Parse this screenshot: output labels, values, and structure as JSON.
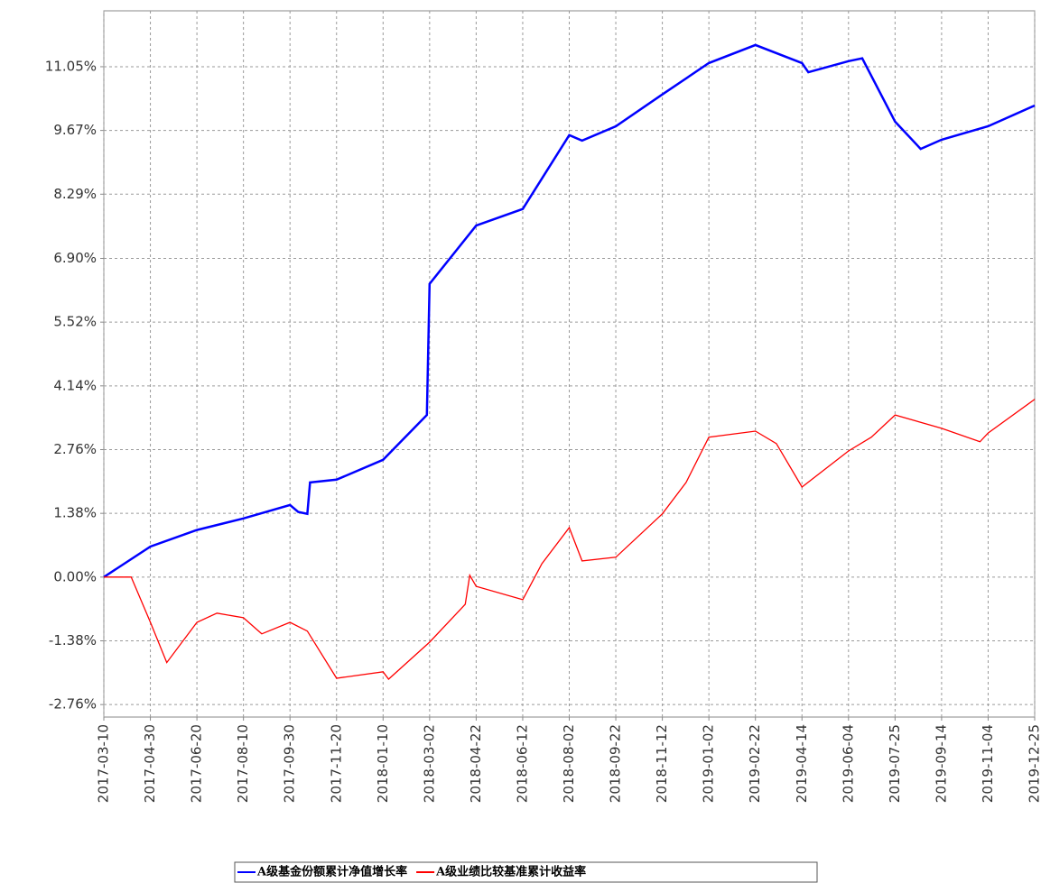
{
  "chart_data": {
    "type": "line",
    "xlim": [
      "2017-03-10",
      "2019-12-25"
    ],
    "xticks": [
      "2017-03-10",
      "2017-04-30",
      "2017-06-20",
      "2017-08-10",
      "2017-09-30",
      "2017-11-20",
      "2018-01-10",
      "2018-03-02",
      "2018-04-22",
      "2018-06-12",
      "2018-08-02",
      "2018-09-22",
      "2018-11-12",
      "2019-01-02",
      "2019-02-22",
      "2019-04-14",
      "2019-06-04",
      "2019-07-25",
      "2019-09-14",
      "2019-11-04",
      "2019-12-25"
    ],
    "ylim": [
      -3.03,
      12.26
    ],
    "yticks": [
      {
        "value": -2.76,
        "label": "-2.76%"
      },
      {
        "value": -1.38,
        "label": "-1.38%"
      },
      {
        "value": 0,
        "label": "0.00%"
      },
      {
        "value": 1.38,
        "label": "1.38%"
      },
      {
        "value": 2.76,
        "label": "2.76%"
      },
      {
        "value": 4.14,
        "label": "4.14%"
      },
      {
        "value": 5.52,
        "label": "5.52%"
      },
      {
        "value": 6.9,
        "label": "6.90%"
      },
      {
        "value": 8.29,
        "label": "8.29%"
      },
      {
        "value": 9.67,
        "label": "9.67%"
      },
      {
        "value": 11.05,
        "label": "11.05%"
      }
    ],
    "grid": true,
    "legend": "bottom",
    "series": [
      {
        "name": "A级基金份额累计净值增长率",
        "color": "#0000ff",
        "x": [
          "2017-03-10",
          "2017-04-30",
          "2017-06-20",
          "2017-08-10",
          "2017-09-30",
          "2017-10-09",
          "2017-10-19",
          "2017-10-22",
          "2017-11-20",
          "2018-01-10",
          "2018-02-27",
          "2018-03-02",
          "2018-04-22",
          "2018-06-12",
          "2018-08-02",
          "2018-08-16",
          "2018-09-22",
          "2018-11-12",
          "2019-01-02",
          "2019-02-22",
          "2019-04-14",
          "2019-04-21",
          "2019-06-04",
          "2019-06-19",
          "2019-07-25",
          "2019-08-22",
          "2019-09-14",
          "2019-11-04",
          "2019-12-25"
        ],
        "values": [
          0.0,
          0.66,
          1.02,
          1.27,
          1.56,
          1.41,
          1.37,
          2.05,
          2.11,
          2.54,
          3.51,
          6.35,
          7.61,
          7.97,
          9.57,
          9.45,
          9.76,
          10.45,
          11.13,
          11.52,
          11.13,
          10.93,
          11.17,
          11.23,
          9.86,
          9.27,
          9.47,
          9.76,
          10.21
        ]
      },
      {
        "name": "A级业绩比较基准累计收益率",
        "color": "#ff0000",
        "x": [
          "2017-03-10",
          "2017-04-09",
          "2017-04-30",
          "2017-05-18",
          "2017-06-20",
          "2017-07-12",
          "2017-08-10",
          "2017-08-30",
          "2017-09-30",
          "2017-10-19",
          "2017-11-20",
          "2018-01-10",
          "2018-01-16",
          "2018-03-02",
          "2018-04-10",
          "2018-04-15",
          "2018-04-22",
          "2018-06-12",
          "2018-07-03",
          "2018-08-02",
          "2018-08-16",
          "2018-09-22",
          "2018-11-12",
          "2018-12-08",
          "2019-01-02",
          "2019-02-22",
          "2019-03-17",
          "2019-04-14",
          "2019-06-04",
          "2019-06-29",
          "2019-07-25",
          "2019-09-14",
          "2019-10-26",
          "2019-11-04",
          "2019-12-25"
        ],
        "values": [
          0.0,
          0.0,
          -0.98,
          -1.85,
          -0.98,
          -0.78,
          -0.88,
          -1.23,
          -0.98,
          -1.17,
          -2.19,
          -2.05,
          -2.21,
          -1.41,
          -0.59,
          0.04,
          -0.2,
          -0.49,
          0.29,
          1.07,
          0.35,
          0.43,
          1.37,
          2.05,
          3.03,
          3.16,
          2.89,
          1.95,
          2.73,
          3.03,
          3.51,
          3.22,
          2.93,
          3.12,
          3.85
        ]
      }
    ]
  }
}
